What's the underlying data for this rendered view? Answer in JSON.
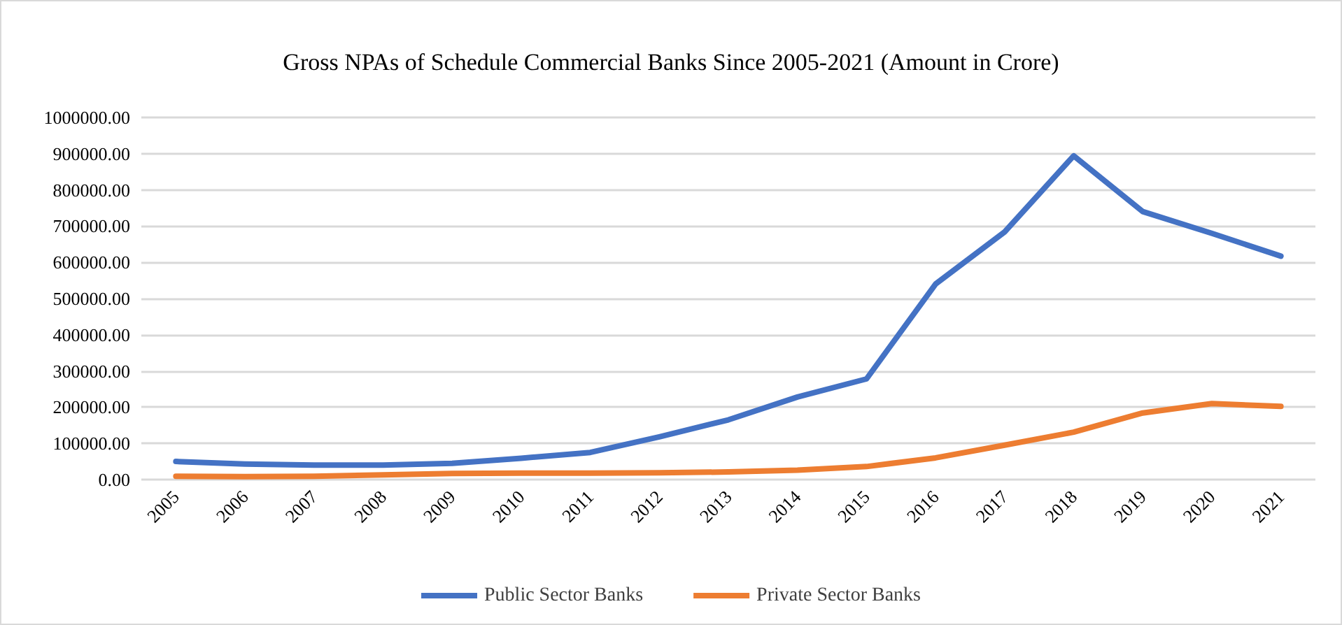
{
  "chart_data": {
    "type": "line",
    "title": "Gross NPAs of Schedule Commercial Banks Since 2005-2021 (Amount in Crore)",
    "categories": [
      "2005",
      "2006",
      "2007",
      "2008",
      "2009",
      "2010",
      "2011",
      "2012",
      "2013",
      "2014",
      "2015",
      "2016",
      "2017",
      "2018",
      "2019",
      "2020",
      "2021"
    ],
    "series": [
      {
        "name": "Public Sector Banks",
        "color": "#4472c4",
        "values": [
          50000,
          43000,
          40000,
          40000,
          45000,
          59000,
          75000,
          118000,
          165000,
          228000,
          278000,
          540000,
          684000,
          894000,
          740000,
          680000,
          617000
        ]
      },
      {
        "name": "Private Sector Banks",
        "color": "#ed7d31",
        "values": [
          9000,
          8000,
          9000,
          13000,
          17000,
          18000,
          18000,
          19000,
          21000,
          26000,
          36000,
          60000,
          95000,
          131000,
          184000,
          210000,
          202000
        ]
      }
    ],
    "ylim": [
      0,
      1000000
    ],
    "yticks": [
      {
        "value": 0,
        "label": "0.00"
      },
      {
        "value": 100000,
        "label": "100000.00"
      },
      {
        "value": 200000,
        "label": "200000.00"
      },
      {
        "value": 300000,
        "label": "300000.00"
      },
      {
        "value": 400000,
        "label": "400000.00"
      },
      {
        "value": 500000,
        "label": "500000.00"
      },
      {
        "value": 600000,
        "label": "600000.00"
      },
      {
        "value": 700000,
        "label": "700000.00"
      },
      {
        "value": 800000,
        "label": "800000.00"
      },
      {
        "value": 900000,
        "label": "900000.00"
      },
      {
        "value": 1000000,
        "label": "1000000.00"
      }
    ],
    "grid": "y",
    "legend": "bottom",
    "marker": "none",
    "line_style": "solid"
  }
}
